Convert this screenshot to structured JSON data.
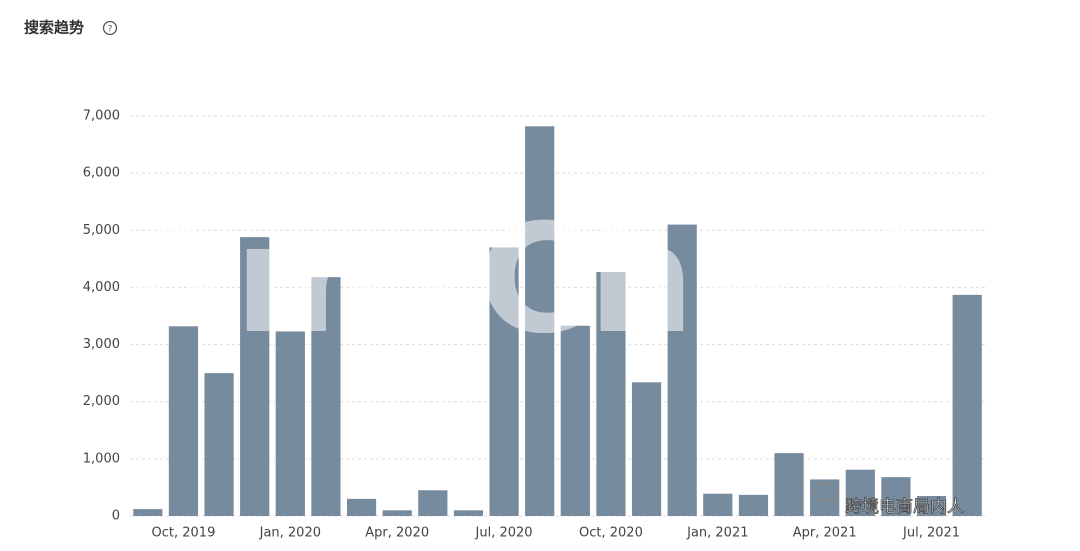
{
  "chart_data": {
    "type": "bar",
    "title": "搜索趋势",
    "watermark": "AmzChart",
    "source": "跨境电商局内人",
    "categories": [
      null,
      "Oct, 2019",
      null,
      null,
      "Jan, 2020",
      null,
      null,
      "Apr, 2020",
      null,
      null,
      "Jul, 2020",
      null,
      null,
      "Oct, 2020",
      null,
      null,
      "Jan, 2021",
      null,
      null,
      "Apr, 2021",
      null,
      null,
      "Jul, 2021",
      null
    ],
    "values": [
      120,
      3320,
      2500,
      4880,
      3230,
      4180,
      300,
      100,
      450,
      100,
      4700,
      6820,
      3330,
      4270,
      2340,
      5100,
      390,
      370,
      1100,
      640,
      810,
      680,
      350,
      3870
    ],
    "color": "#768b9e",
    "ylim": [
      0,
      7000
    ],
    "yticks": [
      0,
      {
        "value": 1000,
        "label": "1,000"
      },
      {
        "value": 2000,
        "label": "2,000"
      },
      {
        "value": 3000,
        "label": "3,000"
      },
      {
        "value": 4000,
        "label": "4,000"
      },
      {
        "value": 5000,
        "label": "5,000"
      },
      {
        "value": 6000,
        "label": "6,000"
      },
      {
        "value": 7000,
        "label": "7,000"
      }
    ],
    "grid": true
  }
}
